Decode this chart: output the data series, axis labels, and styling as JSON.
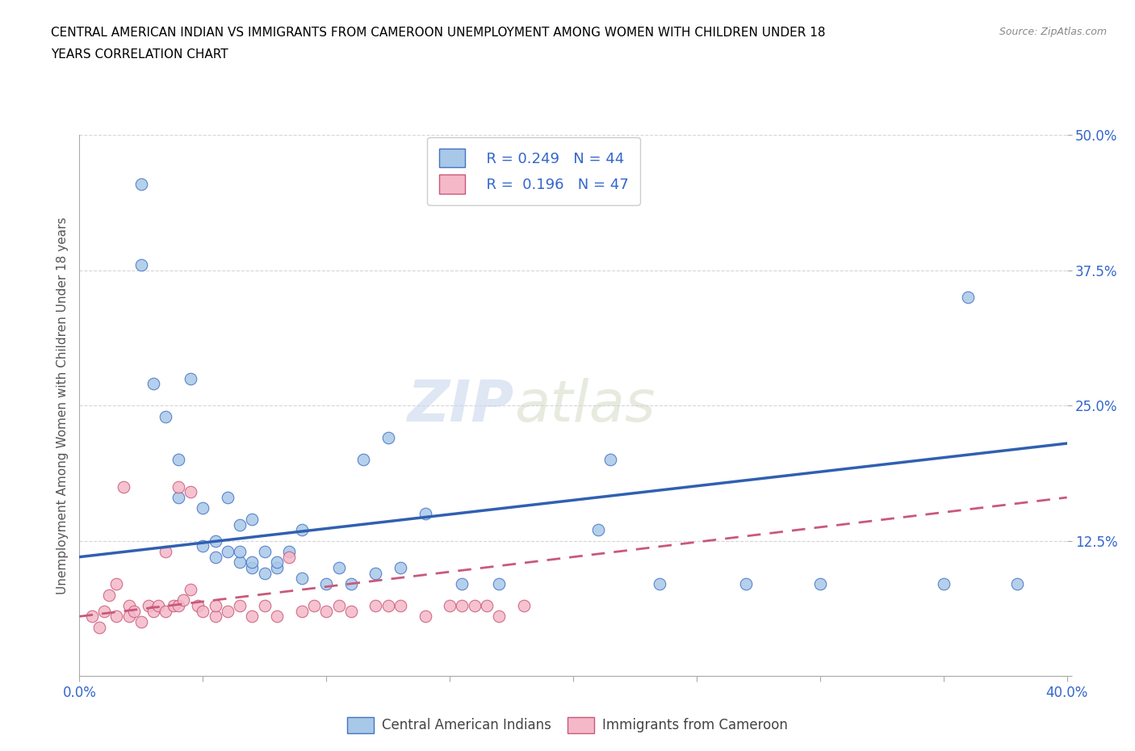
{
  "title_line1": "CENTRAL AMERICAN INDIAN VS IMMIGRANTS FROM CAMEROON UNEMPLOYMENT AMONG WOMEN WITH CHILDREN UNDER 18",
  "title_line2": "YEARS CORRELATION CHART",
  "source": "Source: ZipAtlas.com",
  "ylabel": "Unemployment Among Women with Children Under 18 years",
  "xlim": [
    0.0,
    0.4
  ],
  "ylim": [
    0.0,
    0.5
  ],
  "xticks": [
    0.0,
    0.05,
    0.1,
    0.15,
    0.2,
    0.25,
    0.3,
    0.35,
    0.4
  ],
  "yticks": [
    0.0,
    0.125,
    0.25,
    0.375,
    0.5
  ],
  "xtick_labels": [
    "0.0%",
    "",
    "",
    "",
    "",
    "",
    "",
    "",
    "40.0%"
  ],
  "ytick_labels": [
    "",
    "12.5%",
    "25.0%",
    "37.5%",
    "50.0%"
  ],
  "watermark_zip": "ZIP",
  "watermark_atlas": "atlas",
  "legend_r1": "R = 0.249",
  "legend_n1": "N = 44",
  "legend_r2": "R =  0.196",
  "legend_n2": "N = 47",
  "color_blue": "#a8c8e8",
  "color_pink": "#f4b8c8",
  "color_blue_edge": "#4472c4",
  "color_pink_edge": "#c9597a",
  "color_blue_line": "#3060b0",
  "color_pink_line": "#c9597a",
  "blue_scatter_x": [
    0.025,
    0.025,
    0.03,
    0.035,
    0.04,
    0.04,
    0.045,
    0.05,
    0.05,
    0.055,
    0.055,
    0.06,
    0.06,
    0.065,
    0.065,
    0.065,
    0.07,
    0.07,
    0.07,
    0.075,
    0.075,
    0.08,
    0.08,
    0.085,
    0.09,
    0.09,
    0.1,
    0.105,
    0.11,
    0.115,
    0.12,
    0.125,
    0.13,
    0.14,
    0.155,
    0.17,
    0.21,
    0.215,
    0.235,
    0.27,
    0.3,
    0.35,
    0.36,
    0.38
  ],
  "blue_scatter_y": [
    0.455,
    0.38,
    0.27,
    0.24,
    0.2,
    0.165,
    0.275,
    0.155,
    0.12,
    0.125,
    0.11,
    0.115,
    0.165,
    0.105,
    0.115,
    0.14,
    0.1,
    0.105,
    0.145,
    0.095,
    0.115,
    0.1,
    0.105,
    0.115,
    0.09,
    0.135,
    0.085,
    0.1,
    0.085,
    0.2,
    0.095,
    0.22,
    0.1,
    0.15,
    0.085,
    0.085,
    0.135,
    0.2,
    0.085,
    0.085,
    0.085,
    0.085,
    0.35,
    0.085
  ],
  "pink_scatter_x": [
    0.005,
    0.008,
    0.01,
    0.012,
    0.015,
    0.015,
    0.018,
    0.02,
    0.02,
    0.022,
    0.025,
    0.028,
    0.03,
    0.032,
    0.035,
    0.035,
    0.038,
    0.04,
    0.04,
    0.042,
    0.045,
    0.045,
    0.048,
    0.05,
    0.055,
    0.055,
    0.06,
    0.065,
    0.07,
    0.075,
    0.08,
    0.085,
    0.09,
    0.095,
    0.1,
    0.105,
    0.11,
    0.12,
    0.125,
    0.13,
    0.14,
    0.15,
    0.155,
    0.16,
    0.165,
    0.17,
    0.18
  ],
  "pink_scatter_y": [
    0.055,
    0.045,
    0.06,
    0.075,
    0.055,
    0.085,
    0.175,
    0.065,
    0.055,
    0.06,
    0.05,
    0.065,
    0.06,
    0.065,
    0.06,
    0.115,
    0.065,
    0.065,
    0.175,
    0.07,
    0.08,
    0.17,
    0.065,
    0.06,
    0.055,
    0.065,
    0.06,
    0.065,
    0.055,
    0.065,
    0.055,
    0.11,
    0.06,
    0.065,
    0.06,
    0.065,
    0.06,
    0.065,
    0.065,
    0.065,
    0.055,
    0.065,
    0.065,
    0.065,
    0.065,
    0.055,
    0.065
  ],
  "blue_trend_x0": 0.0,
  "blue_trend_x1": 0.4,
  "blue_trend_y0": 0.11,
  "blue_trend_y1": 0.215,
  "pink_trend_x0": 0.0,
  "pink_trend_x1": 0.4,
  "pink_trend_y0": 0.055,
  "pink_trend_y1": 0.165
}
